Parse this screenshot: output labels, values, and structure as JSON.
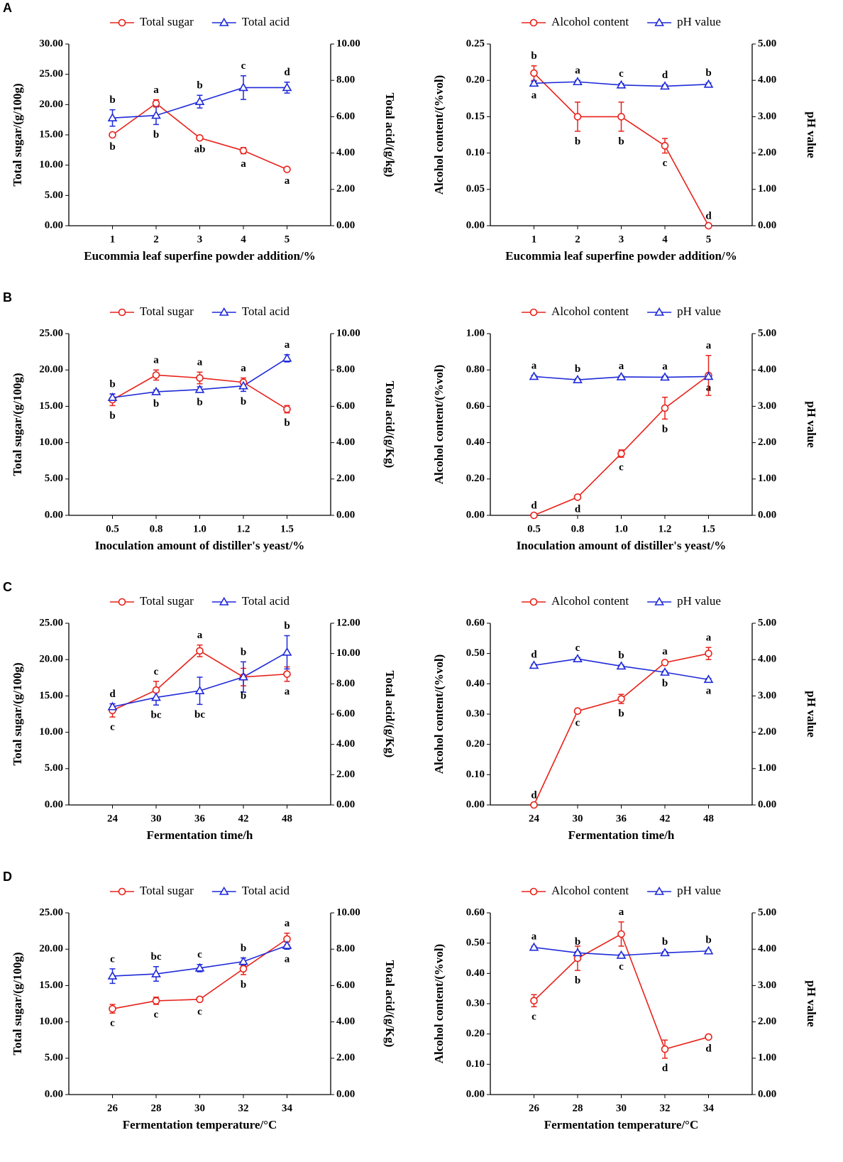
{
  "panel_labels": [
    "A",
    "B",
    "C",
    "D"
  ],
  "chart_data": [
    {
      "type": "line",
      "categories": [
        "1",
        "2",
        "3",
        "4",
        "5"
      ],
      "xlabel": "Eucommia leaf superfine powder addition/%",
      "ylabel": "Total sugar/(g/100g)",
      "y2label": "Total acid/(g/kg)",
      "ylim": [
        0,
        30
      ],
      "yticks": [
        {
          "value": 0,
          "label": "0.00"
        },
        {
          "value": 5,
          "label": "5.00"
        },
        {
          "value": 10,
          "label": "10.00"
        },
        {
          "value": 15,
          "label": "15.00"
        },
        {
          "value": 20,
          "label": "20.00"
        },
        {
          "value": 25,
          "label": "25.00"
        },
        {
          "value": 30,
          "label": "30.00"
        }
      ],
      "y2lim": [
        0,
        10
      ],
      "y2ticks": [
        {
          "value": 0,
          "label": "0.00"
        },
        {
          "value": 2,
          "label": "2.00"
        },
        {
          "value": 4,
          "label": "4.00"
        },
        {
          "value": 6,
          "label": "6.00"
        },
        {
          "value": 8,
          "label": "8.00"
        },
        {
          "value": 10,
          "label": "10.00"
        }
      ],
      "series": [
        {
          "name": "Total sugar",
          "color": "#e8221b",
          "marker": "circle",
          "values": [
            15.0,
            20.2,
            14.5,
            12.4,
            9.3
          ],
          "errors": [
            0.3,
            0.6,
            0.2,
            0.5,
            0.2
          ],
          "letters": [
            "b",
            "a",
            "ab",
            "a",
            "a"
          ]
        },
        {
          "name": "Total acid",
          "color": "#1f2ad8",
          "marker": "triangle",
          "axis": "y2",
          "values": [
            5.93,
            6.07,
            6.83,
            7.6,
            7.6
          ],
          "errors": [
            0.45,
            0.5,
            0.35,
            0.65,
            0.3
          ],
          "letters": [
            "b",
            "b",
            "b",
            "c",
            "d"
          ]
        }
      ]
    },
    {
      "type": "line",
      "categories": [
        "1",
        "2",
        "3",
        "4",
        "5"
      ],
      "xlabel": "Eucommia leaf superfine powder addition/%",
      "ylabel": "Alcohol content/(%vol)",
      "y2label": "pH value",
      "ylim": [
        0,
        0.25
      ],
      "yticks": [
        {
          "value": 0,
          "label": "0.00"
        },
        {
          "value": 0.05,
          "label": "0.05"
        },
        {
          "value": 0.1,
          "label": "0.10"
        },
        {
          "value": 0.15,
          "label": "0.15"
        },
        {
          "value": 0.2,
          "label": "0.20"
        },
        {
          "value": 0.25,
          "label": "0.25"
        }
      ],
      "y2lim": [
        0,
        5
      ],
      "y2ticks": [
        {
          "value": 0,
          "label": "0.00"
        },
        {
          "value": 1,
          "label": "1.00"
        },
        {
          "value": 2,
          "label": "2.00"
        },
        {
          "value": 3,
          "label": "3.00"
        },
        {
          "value": 4,
          "label": "4.00"
        },
        {
          "value": 5,
          "label": "5.00"
        }
      ],
      "series": [
        {
          "name": "Alcohol content",
          "color": "#e8221b",
          "marker": "circle",
          "values": [
            0.21,
            0.15,
            0.15,
            0.11,
            0
          ],
          "errors": [
            0.01,
            0.02,
            0.02,
            0.01,
            0
          ],
          "letters": [
            "b",
            "b",
            "b",
            "c",
            "d"
          ]
        },
        {
          "name": "pH value",
          "color": "#1f2ad8",
          "marker": "triangle",
          "axis": "y2",
          "values": [
            3.92,
            3.96,
            3.87,
            3.84,
            3.89
          ],
          "errors": [
            0.05,
            0.04,
            0.04,
            0.04,
            0.04
          ],
          "letters": [
            "a",
            "a",
            "c",
            "d",
            "b"
          ]
        }
      ]
    },
    {
      "type": "line",
      "categories": [
        "0.5",
        "0.8",
        "1.0",
        "1.2",
        "1.5"
      ],
      "xlabel": "Inoculation amount of distiller's yeast/%",
      "ylabel": "Total sugar/(g/100g)",
      "y2label": "Total acid/(g/Kg)",
      "ylim": [
        0,
        25
      ],
      "yticks": [
        {
          "value": 0,
          "label": "0.00"
        },
        {
          "value": 5,
          "label": "5.00"
        },
        {
          "value": 10,
          "label": "10.00"
        },
        {
          "value": 15,
          "label": "15.00"
        },
        {
          "value": 20,
          "label": "20.00"
        },
        {
          "value": 25,
          "label": "25.00"
        }
      ],
      "y2lim": [
        0,
        10
      ],
      "y2ticks": [
        {
          "value": 0,
          "label": "0.00"
        },
        {
          "value": 2,
          "label": "2.00"
        },
        {
          "value": 4,
          "label": "4.00"
        },
        {
          "value": 6,
          "label": "6.00"
        },
        {
          "value": 8,
          "label": "8.00"
        },
        {
          "value": 10,
          "label": "10.00"
        }
      ],
      "series": [
        {
          "name": "Total sugar",
          "color": "#e8221b",
          "marker": "circle",
          "values": [
            15.9,
            19.3,
            18.9,
            18.3,
            14.6
          ],
          "errors": [
            0.8,
            0.7,
            0.8,
            0.6,
            0.5
          ],
          "letters": [
            "b",
            "a",
            "a",
            "a",
            "b"
          ]
        },
        {
          "name": "Total acid",
          "color": "#1f2ad8",
          "marker": "triangle",
          "axis": "y2",
          "values": [
            6.48,
            6.8,
            6.92,
            7.12,
            8.64
          ],
          "errors": [
            0.2,
            0.1,
            0.15,
            0.3,
            0.2
          ],
          "letters": [
            "b",
            "b",
            "b",
            "b",
            "a"
          ]
        }
      ]
    },
    {
      "type": "line",
      "categories": [
        "0.5",
        "0.8",
        "1.0",
        "1.2",
        "1.5"
      ],
      "xlabel": "Inoculation amount of distiller's yeast/%",
      "ylabel": "Alcohol content/(%vol)",
      "y2label": "pH value",
      "ylim": [
        0,
        1
      ],
      "yticks": [
        {
          "value": 0,
          "label": "0.00"
        },
        {
          "value": 0.2,
          "label": "0.20"
        },
        {
          "value": 0.4,
          "label": "0.40"
        },
        {
          "value": 0.6,
          "label": "0.60"
        },
        {
          "value": 0.8,
          "label": "0.80"
        },
        {
          "value": 1,
          "label": "1.00"
        }
      ],
      "y2lim": [
        0,
        5
      ],
      "y2ticks": [
        {
          "value": 0,
          "label": "0.00"
        },
        {
          "value": 1,
          "label": "1.00"
        },
        {
          "value": 2,
          "label": "2.00"
        },
        {
          "value": 3,
          "label": "3.00"
        },
        {
          "value": 4,
          "label": "4.00"
        },
        {
          "value": 5,
          "label": "5.00"
        }
      ],
      "series": [
        {
          "name": "Alcohol content",
          "color": "#e8221b",
          "marker": "circle",
          "values": [
            0,
            0.1,
            0.34,
            0.59,
            0.77
          ],
          "errors": [
            0,
            0.01,
            0.02,
            0.06,
            0.11
          ],
          "letters": [
            "d",
            "d",
            "c",
            "b",
            "a"
          ]
        },
        {
          "name": "pH value",
          "color": "#1f2ad8",
          "marker": "triangle",
          "axis": "y2",
          "values": [
            3.82,
            3.73,
            3.81,
            3.8,
            3.82
          ],
          "errors": [
            0.03,
            0.03,
            0.03,
            0.03,
            0.03
          ],
          "letters": [
            "a",
            "b",
            "a",
            "a",
            "a"
          ]
        }
      ]
    },
    {
      "type": "line",
      "categories": [
        "24",
        "30",
        "36",
        "42",
        "48"
      ],
      "xlabel": "Fermentation time/h",
      "ylabel": "Total sugar/(g/100g)",
      "y2label": "Total acid/(g/Kg)",
      "ylim": [
        0,
        25
      ],
      "yticks": [
        {
          "value": 0,
          "label": "0.00"
        },
        {
          "value": 5,
          "label": "5.00"
        },
        {
          "value": 10,
          "label": "10.00"
        },
        {
          "value": 15,
          "label": "15.00"
        },
        {
          "value": 20,
          "label": "20.00"
        },
        {
          "value": 25,
          "label": "25.00"
        }
      ],
      "y2lim": [
        0,
        12
      ],
      "y2ticks": [
        {
          "value": 0,
          "label": "0.00"
        },
        {
          "value": 2,
          "label": "2.00"
        },
        {
          "value": 4,
          "label": "4.00"
        },
        {
          "value": 6,
          "label": "6.00"
        },
        {
          "value": 8,
          "label": "8.00"
        },
        {
          "value": 10,
          "label": "10.00"
        },
        {
          "value": 12,
          "label": "12.00"
        }
      ],
      "series": [
        {
          "name": "Total sugar",
          "color": "#e8221b",
          "marker": "circle",
          "values": [
            13.0,
            15.8,
            21.2,
            17.6,
            18.0
          ],
          "errors": [
            0.9,
            1.2,
            0.8,
            1.2,
            1.0
          ],
          "letters": [
            "c",
            "c",
            "a",
            "b",
            "a"
          ]
        },
        {
          "name": "Total acid",
          "color": "#1f2ad8",
          "marker": "triangle",
          "axis": "y2",
          "values": [
            6.48,
            7.1,
            7.54,
            8.45,
            10.08
          ],
          "errors": [
            0.2,
            0.5,
            0.9,
            1.0,
            1.1
          ],
          "letters": [
            "d",
            "bc",
            "bc",
            "b",
            "b"
          ]
        }
      ]
    },
    {
      "type": "line",
      "categories": [
        "24",
        "30",
        "36",
        "42",
        "48"
      ],
      "xlabel": "Fermentation time/h",
      "ylabel": "Alcohol content/(%vol)",
      "y2label": "pH value",
      "ylim": [
        0,
        0.6
      ],
      "yticks": [
        {
          "value": 0,
          "label": "0.00"
        },
        {
          "value": 0.1,
          "label": "0.10"
        },
        {
          "value": 0.2,
          "label": "0.20"
        },
        {
          "value": 0.3,
          "label": "0.30"
        },
        {
          "value": 0.4,
          "label": "0.40"
        },
        {
          "value": 0.5,
          "label": "0.50"
        },
        {
          "value": 0.6,
          "label": "0.60"
        }
      ],
      "y2lim": [
        0,
        5
      ],
      "y2ticks": [
        {
          "value": 0,
          "label": "0.00"
        },
        {
          "value": 1,
          "label": "1.00"
        },
        {
          "value": 2,
          "label": "2.00"
        },
        {
          "value": 3,
          "label": "3.00"
        },
        {
          "value": 4,
          "label": "4.00"
        },
        {
          "value": 5,
          "label": "5.00"
        }
      ],
      "series": [
        {
          "name": "Alcohol content",
          "color": "#e8221b",
          "marker": "circle",
          "values": [
            0,
            0.31,
            0.35,
            0.47,
            0.5
          ],
          "errors": [
            0,
            0.005,
            0.015,
            0.005,
            0.02
          ],
          "letters": [
            "d",
            "c",
            "b",
            "a",
            "a"
          ]
        },
        {
          "name": "pH value",
          "color": "#1f2ad8",
          "marker": "triangle",
          "axis": "y2",
          "values": [
            3.84,
            4.02,
            3.82,
            3.65,
            3.45
          ],
          "errors": [
            0.03,
            0.03,
            0.03,
            0.03,
            0.03
          ],
          "letters": [
            "d",
            "c",
            "b",
            "b",
            "a"
          ]
        }
      ]
    },
    {
      "type": "line",
      "categories": [
        "26",
        "28",
        "30",
        "32",
        "34"
      ],
      "xlabel": "Fermentation temperature/°C",
      "ylabel": "Total sugar/(g/100g)",
      "y2label": "Total acid/(g/Kg)",
      "ylim": [
        0,
        25
      ],
      "yticks": [
        {
          "value": 0,
          "label": "0.00"
        },
        {
          "value": 5,
          "label": "5.00"
        },
        {
          "value": 10,
          "label": "10.00"
        },
        {
          "value": 15,
          "label": "15.00"
        },
        {
          "value": 20,
          "label": "20.00"
        },
        {
          "value": 25,
          "label": "25.00"
        }
      ],
      "y2lim": [
        0,
        10
      ],
      "y2ticks": [
        {
          "value": 0,
          "label": "0.00"
        },
        {
          "value": 2,
          "label": "2.00"
        },
        {
          "value": 4,
          "label": "4.00"
        },
        {
          "value": 6,
          "label": "6.00"
        },
        {
          "value": 8,
          "label": "8.00"
        },
        {
          "value": 10,
          "label": "10.00"
        }
      ],
      "series": [
        {
          "name": "Total sugar",
          "color": "#e8221b",
          "marker": "circle",
          "values": [
            11.8,
            12.9,
            13.1,
            17.3,
            21.4
          ],
          "errors": [
            0.6,
            0.5,
            0.3,
            0.8,
            0.8
          ],
          "letters": [
            "c",
            "c",
            "c",
            "b",
            "a"
          ]
        },
        {
          "name": "Total acid",
          "color": "#1f2ad8",
          "marker": "triangle",
          "axis": "y2",
          "values": [
            6.52,
            6.64,
            6.96,
            7.32,
            8.2
          ],
          "errors": [
            0.4,
            0.4,
            0.2,
            0.2,
            0.2
          ],
          "letters": [
            "c",
            "bc",
            "c",
            "b",
            "a"
          ]
        }
      ]
    },
    {
      "type": "line",
      "categories": [
        "26",
        "28",
        "30",
        "32",
        "34"
      ],
      "xlabel": "Fermentation temperature/°C",
      "ylabel": "Alcohol content/(%vol)",
      "y2label": "pH value",
      "ylim": [
        0,
        0.6
      ],
      "yticks": [
        {
          "value": 0,
          "label": "0.00"
        },
        {
          "value": 0.1,
          "label": "0.10"
        },
        {
          "value": 0.2,
          "label": "0.20"
        },
        {
          "value": 0.3,
          "label": "0.30"
        },
        {
          "value": 0.4,
          "label": "0.40"
        },
        {
          "value": 0.5,
          "label": "0.50"
        },
        {
          "value": 0.6,
          "label": "0.60"
        }
      ],
      "y2lim": [
        0,
        5
      ],
      "y2ticks": [
        {
          "value": 0,
          "label": "0.00"
        },
        {
          "value": 1,
          "label": "1.00"
        },
        {
          "value": 2,
          "label": "2.00"
        },
        {
          "value": 3,
          "label": "3.00"
        },
        {
          "value": 4,
          "label": "4.00"
        },
        {
          "value": 5,
          "label": "5.00"
        }
      ],
      "series": [
        {
          "name": "Alcohol content",
          "color": "#e8221b",
          "marker": "circle",
          "values": [
            0.31,
            0.45,
            0.53,
            0.15,
            0.19
          ],
          "errors": [
            0.02,
            0.04,
            0.04,
            0.03,
            0.005
          ],
          "letters": [
            "c",
            "b",
            "a",
            "d",
            "d"
          ]
        },
        {
          "name": "pH value",
          "color": "#1f2ad8",
          "marker": "triangle",
          "axis": "y2",
          "values": [
            4.05,
            3.9,
            3.83,
            3.9,
            3.95
          ],
          "errors": [
            0.03,
            0.03,
            0.03,
            0.03,
            0.03
          ],
          "letters": [
            "a",
            "b",
            "c",
            "b",
            "b"
          ]
        }
      ]
    }
  ]
}
